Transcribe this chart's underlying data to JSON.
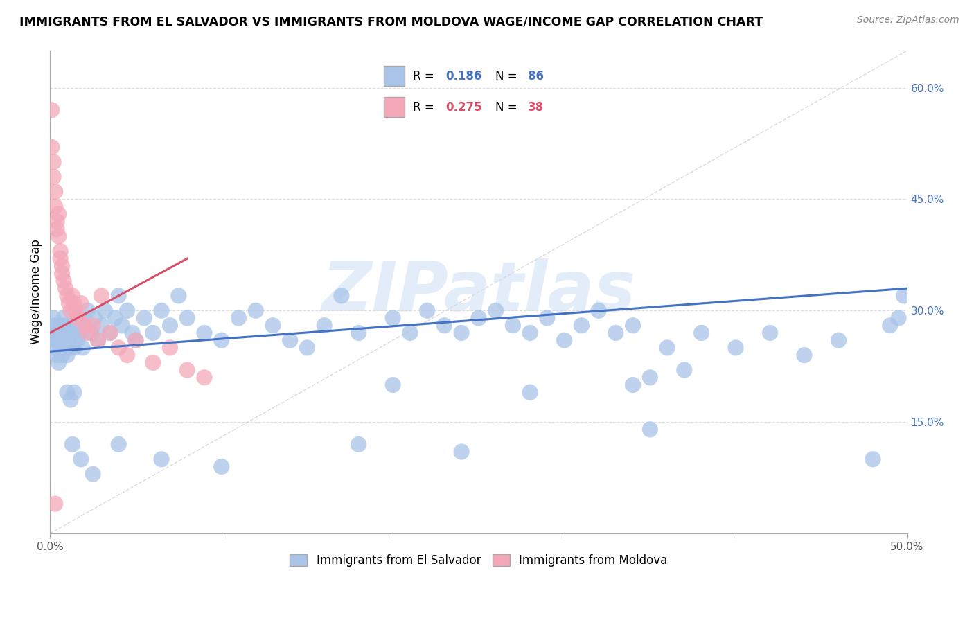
{
  "title": "IMMIGRANTS FROM EL SALVADOR VS IMMIGRANTS FROM MOLDOVA WAGE/INCOME GAP CORRELATION CHART",
  "source": "Source: ZipAtlas.com",
  "ylabel": "Wage/Income Gap",
  "xlim": [
    0.0,
    0.5
  ],
  "ylim": [
    0.0,
    0.65
  ],
  "yticks": [
    0.15,
    0.3,
    0.45,
    0.6
  ],
  "ytick_labels": [
    "15.0%",
    "30.0%",
    "45.0%",
    "60.0%"
  ],
  "xtick_labels_shown": [
    "0.0%",
    "50.0%"
  ],
  "xtick_positions_shown": [
    0.0,
    0.5
  ],
  "color_salvador": "#a8c4e8",
  "color_moldova": "#f4a8b8",
  "color_salvador_line": "#4472C4",
  "color_moldova_line": "#d94f6a",
  "color_diag_line": "#CCCCCC",
  "watermark_text": "ZIPatlas",
  "background_color": "#FFFFFF",
  "grid_color": "#DDDDDD",
  "salvador_x": [
    0.001,
    0.002,
    0.002,
    0.003,
    0.003,
    0.004,
    0.004,
    0.005,
    0.005,
    0.006,
    0.006,
    0.007,
    0.007,
    0.008,
    0.008,
    0.009,
    0.009,
    0.01,
    0.01,
    0.011,
    0.012,
    0.012,
    0.013,
    0.014,
    0.015,
    0.016,
    0.017,
    0.018,
    0.019,
    0.02,
    0.022,
    0.024,
    0.026,
    0.028,
    0.03,
    0.032,
    0.035,
    0.038,
    0.04,
    0.042,
    0.045,
    0.048,
    0.05,
    0.055,
    0.06,
    0.065,
    0.07,
    0.075,
    0.08,
    0.09,
    0.1,
    0.11,
    0.12,
    0.13,
    0.14,
    0.15,
    0.16,
    0.17,
    0.18,
    0.2,
    0.21,
    0.22,
    0.23,
    0.24,
    0.25,
    0.26,
    0.27,
    0.28,
    0.29,
    0.3,
    0.31,
    0.32,
    0.33,
    0.34,
    0.35,
    0.36,
    0.37,
    0.38,
    0.4,
    0.42,
    0.44,
    0.46,
    0.48,
    0.49,
    0.495,
    0.498
  ],
  "salvador_y": [
    0.27,
    0.25,
    0.29,
    0.26,
    0.28,
    0.24,
    0.27,
    0.23,
    0.26,
    0.25,
    0.28,
    0.24,
    0.27,
    0.26,
    0.29,
    0.25,
    0.28,
    0.24,
    0.27,
    0.26,
    0.25,
    0.28,
    0.27,
    0.25,
    0.28,
    0.26,
    0.29,
    0.27,
    0.25,
    0.28,
    0.3,
    0.27,
    0.29,
    0.26,
    0.28,
    0.3,
    0.27,
    0.29,
    0.32,
    0.28,
    0.3,
    0.27,
    0.26,
    0.29,
    0.27,
    0.3,
    0.28,
    0.32,
    0.29,
    0.27,
    0.26,
    0.29,
    0.3,
    0.28,
    0.26,
    0.25,
    0.28,
    0.32,
    0.27,
    0.29,
    0.27,
    0.3,
    0.28,
    0.27,
    0.29,
    0.3,
    0.28,
    0.27,
    0.29,
    0.26,
    0.28,
    0.3,
    0.27,
    0.28,
    0.14,
    0.25,
    0.22,
    0.27,
    0.25,
    0.27,
    0.24,
    0.26,
    0.1,
    0.28,
    0.29,
    0.32
  ],
  "salvador_y_extra_low": [
    0.12,
    0.1,
    0.08,
    0.12,
    0.1,
    0.09,
    0.12,
    0.11,
    0.19,
    0.18,
    0.19,
    0.2,
    0.19,
    0.2,
    0.21
  ],
  "salvador_x_extra_low": [
    0.013,
    0.018,
    0.025,
    0.04,
    0.065,
    0.1,
    0.18,
    0.24,
    0.01,
    0.012,
    0.014,
    0.2,
    0.28,
    0.34,
    0.35
  ],
  "moldova_x": [
    0.001,
    0.001,
    0.002,
    0.002,
    0.003,
    0.003,
    0.004,
    0.004,
    0.005,
    0.005,
    0.006,
    0.006,
    0.007,
    0.007,
    0.008,
    0.009,
    0.01,
    0.011,
    0.012,
    0.013,
    0.014,
    0.015,
    0.016,
    0.018,
    0.02,
    0.022,
    0.025,
    0.028,
    0.03,
    0.035,
    0.04,
    0.045,
    0.05,
    0.06,
    0.07,
    0.08,
    0.09,
    0.003
  ],
  "moldova_y": [
    0.57,
    0.52,
    0.48,
    0.5,
    0.46,
    0.44,
    0.42,
    0.41,
    0.43,
    0.4,
    0.38,
    0.37,
    0.36,
    0.35,
    0.34,
    0.33,
    0.32,
    0.31,
    0.3,
    0.32,
    0.31,
    0.3,
    0.29,
    0.31,
    0.28,
    0.27,
    0.28,
    0.26,
    0.32,
    0.27,
    0.25,
    0.24,
    0.26,
    0.23,
    0.25,
    0.22,
    0.21,
    0.04
  ],
  "legend_r1": "0.186",
  "legend_n1": "86",
  "legend_r2": "0.275",
  "legend_n2": "38"
}
